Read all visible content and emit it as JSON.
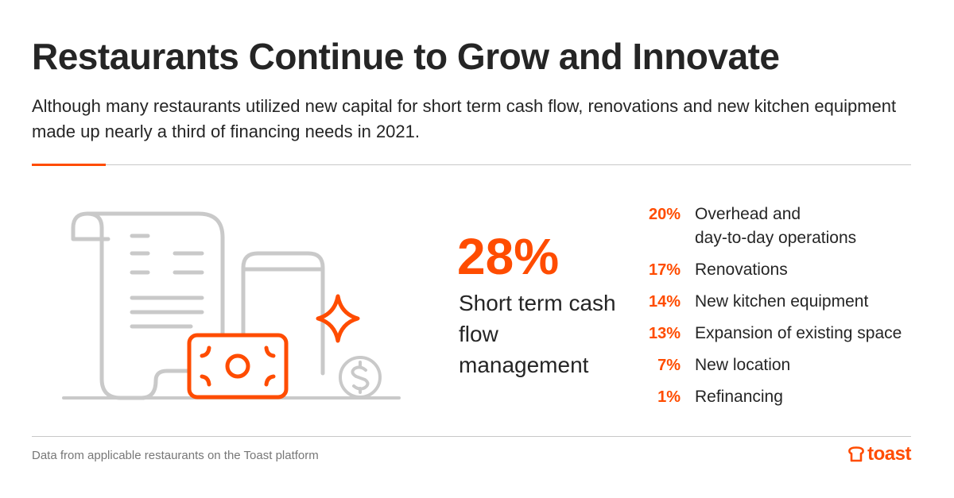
{
  "header": {
    "title": "Restaurants Continue to Grow and Innovate",
    "subtitle": "Although many restaurants utilized new capital for short term cash flow, renovations and new kitchen equipment made up nearly a third of financing needs in 2021."
  },
  "highlight": {
    "value": "28%",
    "label": "Short term cash flow management"
  },
  "breakdown": [
    {
      "pct": "20%",
      "label": "Overhead and\nday-to-day operations"
    },
    {
      "pct": "17%",
      "label": "Renovations"
    },
    {
      "pct": "14%",
      "label": "New kitchen equipment"
    },
    {
      "pct": "13%",
      "label": "Expansion of existing space"
    },
    {
      "pct": "7%",
      "label": "New location"
    },
    {
      "pct": "1%",
      "label": "Refinancing"
    }
  ],
  "footer": {
    "note": "Data from applicable restaurants on the Toast platform",
    "brand": "toast"
  },
  "illustration": {
    "icons": [
      "receipt-icon",
      "phone-icon",
      "sparkle-icon",
      "banknote-icon",
      "dollar-coin-icon"
    ]
  },
  "colors": {
    "accent": "#ff4c00",
    "text": "#252525",
    "muted": "#777777",
    "line_gray": "#c8c8c8",
    "icon_gray": "#c9c9c9"
  }
}
